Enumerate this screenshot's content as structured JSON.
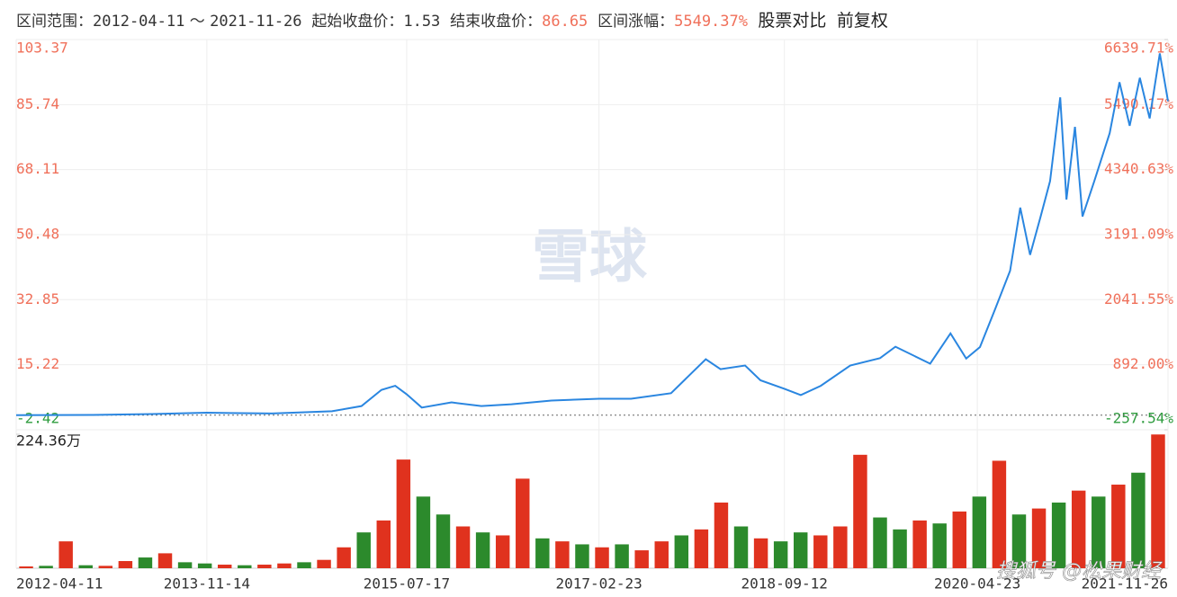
{
  "chart_data": {
    "type": "line",
    "header": {
      "range_label": "区间范围：",
      "start_date": "2012-04-11",
      "sep": "～",
      "end_date": "2021-11-26",
      "start_label": "起始收盘价：",
      "start_close": 1.53,
      "end_label": "结束收盘价：",
      "end_close": 86.65,
      "gain_label": "区间涨幅：",
      "gain": "5549.37%",
      "compare": "股票对比",
      "adjust": "前复权"
    },
    "watermark": "雪球",
    "watermark_2": "搜狐号 @松果财经",
    "xlim": [
      "2012-04-11",
      "2021-11-26"
    ],
    "xticks": [
      "2012-04-11",
      "2013-11-14",
      "2015-07-17",
      "2017-02-23",
      "2018-09-12",
      "2020-04-23",
      "2021-11-26"
    ],
    "ylim": [
      -2.42,
      103.37
    ],
    "yticks": [
      -2.42,
      15.22,
      32.85,
      50.48,
      68.11,
      85.74,
      103.37
    ],
    "y2lim": [
      -257.54,
      6639.71
    ],
    "y2ticks": [
      {
        "value": -257.54,
        "label": "-257.54%"
      },
      {
        "value": 892.0,
        "label": "892.00%"
      },
      {
        "value": 2041.55,
        "label": "2041.55%"
      },
      {
        "value": 3191.09,
        "label": "3191.09%"
      },
      {
        "value": 4340.63,
        "label": "4340.63%"
      },
      {
        "value": 5490.17,
        "label": "5490.17%"
      },
      {
        "value": 6639.71,
        "label": "6639.71%"
      }
    ],
    "up_color": "#f0705a",
    "down_color": "#2e9c3e",
    "grid": true,
    "series": [
      {
        "name": "收盘价",
        "color": "#2a86e0",
        "x": [
          "2012-04-11",
          "2012-12-01",
          "2013-06-01",
          "2013-11-14",
          "2014-06-01",
          "2014-12-01",
          "2015-03-01",
          "2015-05-01",
          "2015-06-12",
          "2015-07-17",
          "2015-09-01",
          "2015-12-01",
          "2016-03-01",
          "2016-06-01",
          "2016-10-01",
          "2017-02-23",
          "2017-06-01",
          "2017-10-01",
          "2018-01-15",
          "2018-03-01",
          "2018-05-15",
          "2018-07-01",
          "2018-09-12",
          "2018-11-01",
          "2019-01-01",
          "2019-04-01",
          "2019-07-01",
          "2019-08-17",
          "2019-12-01",
          "2020-02-01",
          "2020-03-20",
          "2020-05-01",
          "2020-06-15",
          "2020-08-01",
          "2020-09-01",
          "2020-10-01",
          "2020-11-01",
          "2020-12-01",
          "2021-01-01",
          "2021-01-20",
          "2021-02-15",
          "2021-03-10",
          "2021-04-15",
          "2021-06-01",
          "2021-07-01",
          "2021-08-01",
          "2021-09-01",
          "2021-10-01",
          "2021-11-01",
          "2021-11-26"
        ],
        "values": [
          1.53,
          1.6,
          1.84,
          2.2,
          2.0,
          2.6,
          4.0,
          8.4,
          9.5,
          7.2,
          3.6,
          5.0,
          4.0,
          4.5,
          5.5,
          6.0,
          6.0,
          7.5,
          16.7,
          14.0,
          15.0,
          11.0,
          8.7,
          7.0,
          9.5,
          15.0,
          17.0,
          20.1,
          15.5,
          23.7,
          16.9,
          20.0,
          30.0,
          40.7,
          57.8,
          45.0,
          55.0,
          65.0,
          87.7,
          60.0,
          79.7,
          55.4,
          65.0,
          78.0,
          91.8,
          80.0,
          93.0,
          82.0,
          99.6,
          86.65
        ]
      }
    ],
    "volume": {
      "ylim": [
        0,
        224.36
      ],
      "yticks": [
        {
          "value": 224.36,
          "label": "224.36万"
        }
      ],
      "values": [
        3,
        4,
        45,
        5,
        4,
        12,
        18,
        25,
        10,
        8,
        6,
        5,
        6,
        8,
        10,
        14,
        35,
        60,
        80,
        182,
        120,
        90,
        70,
        60,
        55,
        150,
        50,
        45,
        40,
        35,
        40,
        30,
        45,
        55,
        65,
        110,
        70,
        50,
        45,
        60,
        55,
        70,
        190,
        85,
        65,
        80,
        75,
        95,
        120,
        180,
        90,
        100,
        110,
        130,
        120,
        140,
        160,
        224
      ],
      "colors": [
        "#e0321e",
        "#2c8a2c",
        "#e0321e",
        "#2c8a2c",
        "#e0321e",
        "#e0321e",
        "#2c8a2c",
        "#e0321e",
        "#2c8a2c",
        "#2c8a2c",
        "#e0321e",
        "#2c8a2c",
        "#e0321e",
        "#e0321e",
        "#2c8a2c",
        "#e0321e",
        "#e0321e",
        "#2c8a2c",
        "#e0321e",
        "#e0321e",
        "#2c8a2c",
        "#2c8a2c",
        "#e0321e",
        "#2c8a2c",
        "#e0321e",
        "#e0321e",
        "#2c8a2c",
        "#e0321e",
        "#2c8a2c",
        "#e0321e",
        "#2c8a2c",
        "#e0321e",
        "#e0321e",
        "#2c8a2c",
        "#e0321e",
        "#e0321e",
        "#2c8a2c",
        "#e0321e",
        "#2c8a2c",
        "#2c8a2c",
        "#e0321e",
        "#e0321e",
        "#e0321e",
        "#2c8a2c",
        "#2c8a2c",
        "#e0321e",
        "#2c8a2c",
        "#e0321e",
        "#2c8a2c",
        "#e0321e",
        "#2c8a2c",
        "#e0321e",
        "#2c8a2c",
        "#e0321e",
        "#2c8a2c",
        "#e0321e",
        "#2c8a2c",
        "#e0321e"
      ]
    }
  }
}
